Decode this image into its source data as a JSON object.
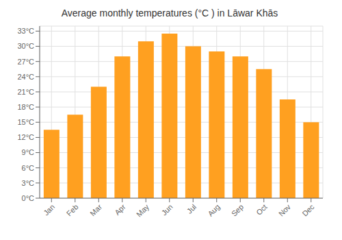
{
  "chart_data": {
    "type": "bar",
    "title": "Average monthly temperatures (°C ) in Lāwar Khās",
    "categories": [
      "Jan",
      "Feb",
      "Mar",
      "Apr",
      "May",
      "Jun",
      "Jul",
      "Aug",
      "Sep",
      "Oct",
      "Nov",
      "Dec"
    ],
    "values": [
      13.5,
      16.5,
      22.0,
      28.0,
      31.0,
      32.5,
      30.0,
      29.0,
      28.0,
      25.5,
      19.5,
      15.0
    ],
    "color": "#FFA020",
    "ylim": [
      0,
      34
    ],
    "yticks": [
      {
        "value": 0,
        "label": "0°C"
      },
      {
        "value": 3,
        "label": "3°C"
      },
      {
        "value": 6,
        "label": "6°C"
      },
      {
        "value": 9,
        "label": "9°C"
      },
      {
        "value": 12,
        "label": "12°C"
      },
      {
        "value": 15,
        "label": "15°C"
      },
      {
        "value": 18,
        "label": "18°C"
      },
      {
        "value": 21,
        "label": "21°C"
      },
      {
        "value": 24,
        "label": "24°C"
      },
      {
        "value": 27,
        "label": "27°C"
      },
      {
        "value": 30,
        "label": "30°C"
      },
      {
        "value": 33,
        "label": "33°C"
      }
    ],
    "grid": true
  }
}
